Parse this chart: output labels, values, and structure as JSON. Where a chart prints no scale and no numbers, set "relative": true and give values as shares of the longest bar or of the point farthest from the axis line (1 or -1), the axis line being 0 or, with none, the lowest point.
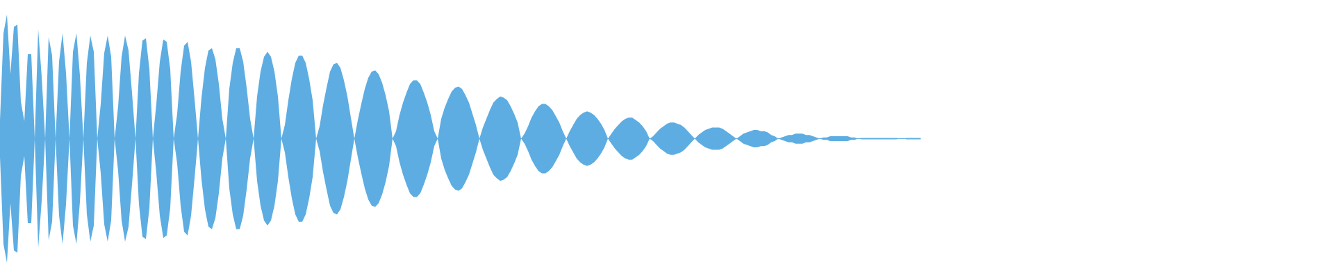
{
  "chart_data": {
    "type": "area",
    "relative": true,
    "categories": [
      null,
      null,
      null,
      null,
      null,
      null,
      null,
      null,
      null,
      null,
      null,
      null,
      null,
      null,
      null,
      null,
      null,
      null,
      null,
      null,
      null,
      null,
      null,
      null,
      null,
      null,
      null,
      null,
      null,
      null,
      null,
      null,
      null,
      null,
      null,
      null,
      null,
      null,
      null,
      null,
      null,
      null,
      null,
      null,
      null,
      null,
      null,
      null,
      null,
      null,
      null,
      null,
      null,
      null,
      null,
      null,
      null,
      null,
      null,
      null,
      null,
      null,
      null,
      null,
      null,
      null,
      null,
      null,
      null,
      null,
      null,
      null,
      null,
      null,
      null,
      null,
      null,
      null,
      null,
      null,
      null,
      null,
      null,
      null,
      null,
      null,
      null,
      null,
      null,
      null,
      null,
      null,
      null,
      null,
      null,
      null,
      null,
      null,
      null,
      null,
      null,
      null,
      null,
      null,
      null,
      null,
      null,
      null,
      null,
      null,
      null,
      null,
      null,
      null,
      null,
      null,
      null,
      null,
      null,
      null,
      null,
      null,
      null,
      null,
      null,
      null,
      null,
      null,
      null,
      null,
      null,
      null,
      null,
      null,
      null,
      null,
      null,
      null,
      null,
      null,
      null,
      null,
      null,
      null,
      null,
      null,
      null,
      null,
      null,
      null,
      null,
      null,
      null,
      null,
      null,
      null,
      null,
      null,
      null,
      null,
      null,
      null,
      null,
      null,
      null,
      null,
      null,
      null,
      null,
      null,
      null,
      null,
      null,
      null,
      null,
      null,
      null,
      null,
      null,
      null,
      null,
      null,
      null,
      null,
      null,
      null,
      null,
      null,
      null,
      null,
      null,
      null,
      null,
      null,
      null,
      null,
      null,
      null,
      null,
      null,
      null,
      null,
      null,
      null,
      null,
      null,
      null,
      null,
      null,
      null,
      null,
      null,
      null,
      null,
      null,
      null,
      null,
      null,
      null,
      null,
      null,
      null,
      null,
      null,
      null,
      null,
      null,
      null,
      null,
      null,
      null,
      null,
      null,
      null,
      null,
      null,
      null,
      null,
      null,
      null,
      null,
      null,
      null,
      null,
      null,
      null,
      null,
      null,
      null,
      null,
      null,
      null,
      null,
      null,
      null,
      null,
      null,
      null,
      null,
      null,
      null,
      null,
      null,
      null,
      null,
      null
    ],
    "series": [
      {
        "color": "#5dade2",
        "values": [
          0.15,
          0.85,
          1.0,
          0.52,
          0.9,
          0.92,
          0.3,
          0.14,
          0.68,
          0.68,
          0,
          0.88,
          0.5,
          0,
          0.82,
          0.67,
          0,
          0.62,
          0.85,
          0.53,
          0,
          0.7,
          0.85,
          0.51,
          0,
          0.61,
          0.83,
          0.7,
          0,
          0.28,
          0.69,
          0.83,
          0.66,
          0,
          0.26,
          0.66,
          0.83,
          0.71,
          0.37,
          0,
          0.53,
          0.79,
          0.81,
          0.56,
          0,
          0.28,
          0.62,
          0.8,
          0.78,
          0.56,
          0,
          0.2,
          0.54,
          0.75,
          0.78,
          0.62,
          0.32,
          0,
          0.33,
          0.57,
          0.71,
          0.73,
          0.64,
          0.44,
          0.16,
          0,
          0.4,
          0.61,
          0.73,
          0.73,
          0.62,
          0.41,
          0.16,
          0,
          0.34,
          0.54,
          0.66,
          0.7,
          0.66,
          0.54,
          0.34,
          0,
          0.11,
          0.31,
          0.48,
          0.61,
          0.67,
          0.67,
          0.61,
          0.48,
          0.31,
          0,
          0.1,
          0.27,
          0.41,
          0.54,
          0.6,
          0.61,
          0.57,
          0.47,
          0.34,
          0.17,
          0,
          0.15,
          0.28,
          0.4,
          0.49,
          0.54,
          0.55,
          0.52,
          0.45,
          0.35,
          0.22,
          0,
          0.06,
          0.19,
          0.29,
          0.37,
          0.44,
          0.47,
          0.47,
          0.44,
          0.37,
          0.29,
          0.19,
          0.06,
          0,
          0.16,
          0.25,
          0.32,
          0.38,
          0.41,
          0.42,
          0.4,
          0.35,
          0.29,
          0.2,
          0.11,
          0,
          0.09,
          0.16,
          0.23,
          0.29,
          0.32,
          0.34,
          0.33,
          0.31,
          0.26,
          0.2,
          0.13,
          0,
          0.04,
          0.1,
          0.17,
          0.22,
          0.26,
          0.28,
          0.28,
          0.26,
          0.23,
          0.18,
          0.13,
          0.06,
          0,
          0.06,
          0.11,
          0.16,
          0.19,
          0.21,
          0.22,
          0.21,
          0.19,
          0.16,
          0.12,
          0.07,
          0,
          0.04,
          0.08,
          0.11,
          0.14,
          0.16,
          0.17,
          0.17,
          0.15,
          0.13,
          0.1,
          0.06,
          0,
          0.02,
          0.05,
          0.08,
          0.1,
          0.12,
          0.13,
          0.13,
          0.12,
          0.11,
          0.09,
          0.06,
          0.03,
          0,
          0.03,
          0.05,
          0.07,
          0.08,
          0.09,
          0.09,
          0.09,
          0.08,
          0.06,
          0.04,
          0.02,
          0,
          0.02,
          0.04,
          0.05,
          0.06,
          0.07,
          0.07,
          0.06,
          0.06,
          0.05,
          0.03,
          0.02,
          0,
          0.01,
          0.02,
          0.03,
          0.03,
          0.04,
          0.04,
          0.04,
          0.03,
          0.03,
          0.02,
          0.01,
          0,
          0.01,
          0.01,
          0.02,
          0.02,
          0.02,
          0.02,
          0.02,
          0.02,
          0.01,
          0.01,
          0,
          0.005,
          0.005,
          0.005,
          0.005,
          0.005,
          0.005,
          0.005,
          0.005,
          0.005,
          0.005,
          0.005,
          0,
          0,
          0.005,
          0.005,
          0.005,
          0.005,
          0.005
        ]
      },
      {
        "color": "#5dade2",
        "values": [
          -0.15,
          -0.85,
          -1.0,
          -0.52,
          -0.9,
          -0.92,
          -0.3,
          -0.14,
          -0.68,
          -0.68,
          0,
          -0.88,
          -0.5,
          0,
          -0.82,
          -0.67,
          0,
          -0.62,
          -0.85,
          -0.53,
          0,
          -0.7,
          -0.85,
          -0.51,
          0,
          -0.61,
          -0.83,
          -0.7,
          0,
          -0.28,
          -0.69,
          -0.83,
          -0.66,
          0,
          -0.26,
          -0.66,
          -0.83,
          -0.71,
          -0.37,
          0,
          -0.53,
          -0.79,
          -0.81,
          -0.56,
          0,
          -0.28,
          -0.62,
          -0.8,
          -0.78,
          -0.56,
          0,
          -0.2,
          -0.54,
          -0.75,
          -0.78,
          -0.62,
          -0.32,
          0,
          -0.33,
          -0.57,
          -0.71,
          -0.73,
          -0.64,
          -0.44,
          -0.16,
          0,
          -0.4,
          -0.61,
          -0.73,
          -0.73,
          -0.62,
          -0.41,
          -0.16,
          0,
          -0.34,
          -0.54,
          -0.66,
          -0.7,
          -0.66,
          -0.54,
          -0.34,
          0,
          -0.11,
          -0.31,
          -0.48,
          -0.61,
          -0.67,
          -0.67,
          -0.61,
          -0.48,
          -0.31,
          0,
          -0.1,
          -0.27,
          -0.41,
          -0.54,
          -0.6,
          -0.61,
          -0.57,
          -0.47,
          -0.34,
          -0.17,
          0,
          -0.15,
          -0.28,
          -0.4,
          -0.49,
          -0.54,
          -0.55,
          -0.52,
          -0.45,
          -0.35,
          -0.22,
          0,
          -0.06,
          -0.19,
          -0.29,
          -0.37,
          -0.44,
          -0.47,
          -0.47,
          -0.44,
          -0.37,
          -0.29,
          -0.19,
          -0.06,
          0,
          -0.16,
          -0.25,
          -0.32,
          -0.38,
          -0.41,
          -0.42,
          -0.4,
          -0.35,
          -0.29,
          -0.2,
          -0.11,
          0,
          -0.09,
          -0.16,
          -0.23,
          -0.29,
          -0.32,
          -0.34,
          -0.33,
          -0.31,
          -0.26,
          -0.2,
          -0.13,
          0,
          -0.04,
          -0.1,
          -0.17,
          -0.22,
          -0.26,
          -0.28,
          -0.28,
          -0.26,
          -0.23,
          -0.18,
          -0.13,
          -0.06,
          0,
          -0.06,
          -0.11,
          -0.16,
          -0.19,
          -0.21,
          -0.22,
          -0.21,
          -0.19,
          -0.16,
          -0.12,
          -0.07,
          0,
          -0.04,
          -0.08,
          -0.11,
          -0.14,
          -0.16,
          -0.17,
          -0.17,
          -0.15,
          -0.13,
          -0.1,
          -0.06,
          0,
          -0.02,
          -0.05,
          -0.08,
          -0.1,
          -0.12,
          -0.13,
          -0.13,
          -0.12,
          -0.11,
          -0.09,
          -0.06,
          -0.03,
          0,
          -0.03,
          -0.05,
          -0.07,
          -0.08,
          -0.09,
          -0.09,
          -0.09,
          -0.08,
          -0.06,
          -0.04,
          -0.02,
          0,
          -0.02,
          -0.04,
          -0.05,
          -0.06,
          -0.07,
          -0.07,
          -0.06,
          -0.06,
          -0.05,
          -0.03,
          -0.02,
          0,
          -0.01,
          -0.02,
          -0.03,
          -0.03,
          -0.04,
          -0.04,
          -0.04,
          -0.03,
          -0.03,
          -0.02,
          -0.01,
          0,
          -0.01,
          -0.01,
          -0.02,
          -0.02,
          -0.02,
          -0.02,
          -0.02,
          -0.02,
          -0.01,
          -0.01,
          0,
          -0.005,
          -0.005,
          -0.005,
          -0.005,
          -0.005,
          -0.005,
          -0.005,
          -0.005,
          -0.005,
          -0.005,
          -0.005,
          0,
          0,
          -0.005,
          -0.005,
          -0.005,
          -0.005,
          -0.005
        ]
      }
    ],
    "ref_lines": [
      {
        "axis": "y",
        "value": 0,
        "color": "#5dade2"
      }
    ]
  }
}
